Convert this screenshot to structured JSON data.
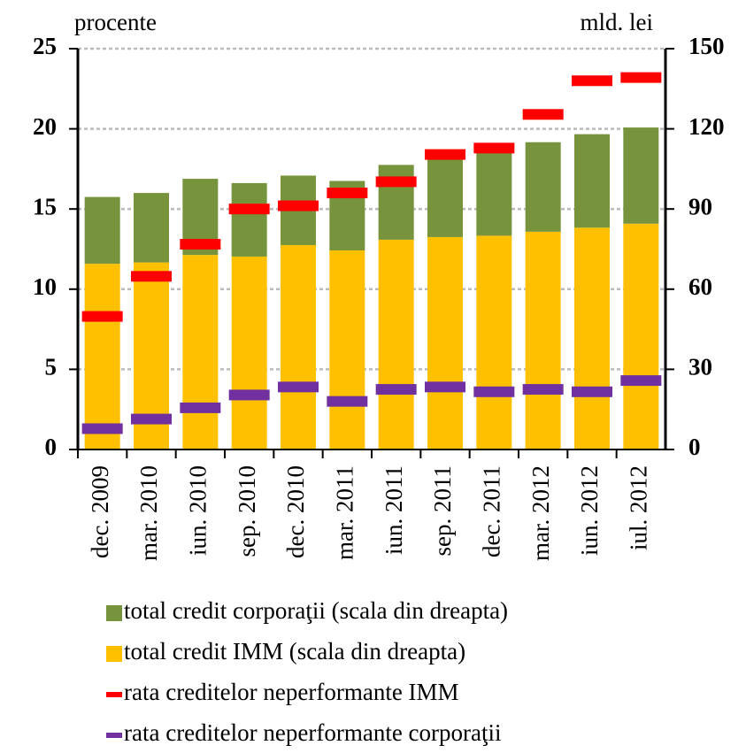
{
  "chart_data": {
    "type": "bar_stacked_with_markers",
    "y_label": "procente",
    "y2_label": "mld. lei",
    "categories": [
      "dec. 2009",
      "mar. 2010",
      "iun. 2010",
      "sep. 2010",
      "dec. 2010",
      "mar. 2011",
      "iun. 2011",
      "sep. 2011",
      "dec. 2011",
      "mar. 2012",
      "iun. 2012",
      "iul. 2012"
    ],
    "ylim": [
      0,
      25
    ],
    "yticks": [
      0,
      5,
      10,
      15,
      20,
      25
    ],
    "y2lim": [
      0,
      150
    ],
    "y2ticks": [
      0,
      30,
      60,
      90,
      120,
      150
    ],
    "grid": true,
    "series": [
      {
        "name": "total credit corporaţii (scala din dreapta)",
        "color": "#77933c",
        "axis": "y2",
        "kind": "bar",
        "values": [
          25,
          26,
          28.5,
          27.5,
          26,
          26,
          28,
          31.5,
          32,
          33.5,
          35,
          36
        ]
      },
      {
        "name": "total credit IMM (scala din dreapta)",
        "color": "#ffc000",
        "axis": "y2",
        "kind": "bar",
        "values": [
          69.5,
          70,
          72.8,
          72.2,
          76.5,
          74.5,
          78.5,
          79.5,
          80,
          81.5,
          83,
          84.5
        ]
      },
      {
        "name": "rata creditelor neperformante IMM",
        "color": "#ff0000",
        "axis": "y",
        "kind": "marker",
        "values": [
          8.3,
          10.8,
          12.8,
          15.0,
          15.2,
          16.0,
          16.7,
          18.4,
          18.8,
          20.9,
          23.0,
          23.2
        ]
      },
      {
        "name": "rata creditelor neperformante corporaţii",
        "color": "#7030a0",
        "axis": "y",
        "kind": "marker",
        "values": [
          1.3,
          1.9,
          2.6,
          3.4,
          3.9,
          3.0,
          3.75,
          3.9,
          3.6,
          3.75,
          3.6,
          4.3
        ]
      }
    ]
  }
}
